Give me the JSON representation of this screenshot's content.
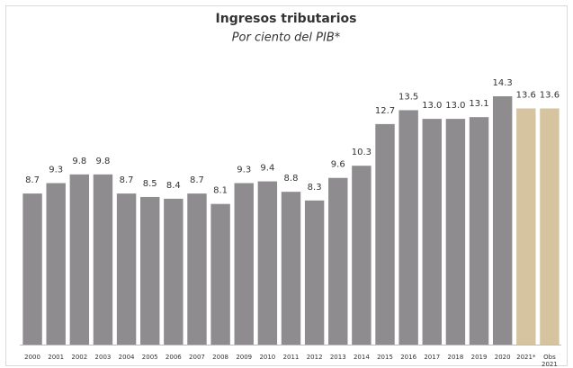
{
  "chart_data": {
    "type": "bar",
    "title": "Ingresos tributarios",
    "subtitle": "Por ciento del PIB*",
    "categories": [
      "2000",
      "2001",
      "2002",
      "2003",
      "2004",
      "2005",
      "2006",
      "2007",
      "2008",
      "2009",
      "2010",
      "2011",
      "2012",
      "2013",
      "2014",
      "2015",
      "2016",
      "2017",
      "2018",
      "2019",
      "2020",
      "2021*",
      "Obs 2021"
    ],
    "values": [
      8.7,
      9.3,
      9.8,
      9.8,
      8.7,
      8.5,
      8.4,
      8.7,
      8.1,
      9.3,
      9.4,
      8.8,
      8.3,
      9.6,
      10.3,
      12.7,
      13.5,
      13.0,
      13.0,
      13.1,
      14.3,
      13.6,
      13.6
    ],
    "value_labels": [
      "8.7",
      "9.3",
      "9.8",
      "9.8",
      "8.7",
      "8.5",
      "8.4",
      "8.7",
      "8.1",
      "9.3",
      "9.4",
      "8.8",
      "8.3",
      "9.6",
      "10.3",
      "12.7",
      "13.5",
      "13.0",
      "13.0",
      "13.1",
      "14.3",
      "13.6",
      "13.6"
    ],
    "colors": [
      "#8e8c8f",
      "#8e8c8f",
      "#8e8c8f",
      "#8e8c8f",
      "#8e8c8f",
      "#8e8c8f",
      "#8e8c8f",
      "#8e8c8f",
      "#8e8c8f",
      "#8e8c8f",
      "#8e8c8f",
      "#8e8c8f",
      "#8e8c8f",
      "#8e8c8f",
      "#8e8c8f",
      "#8e8c8f",
      "#8e8c8f",
      "#8e8c8f",
      "#8e8c8f",
      "#8e8c8f",
      "#8e8c8f",
      "#d5c49f",
      "#d5c49f"
    ]
  }
}
